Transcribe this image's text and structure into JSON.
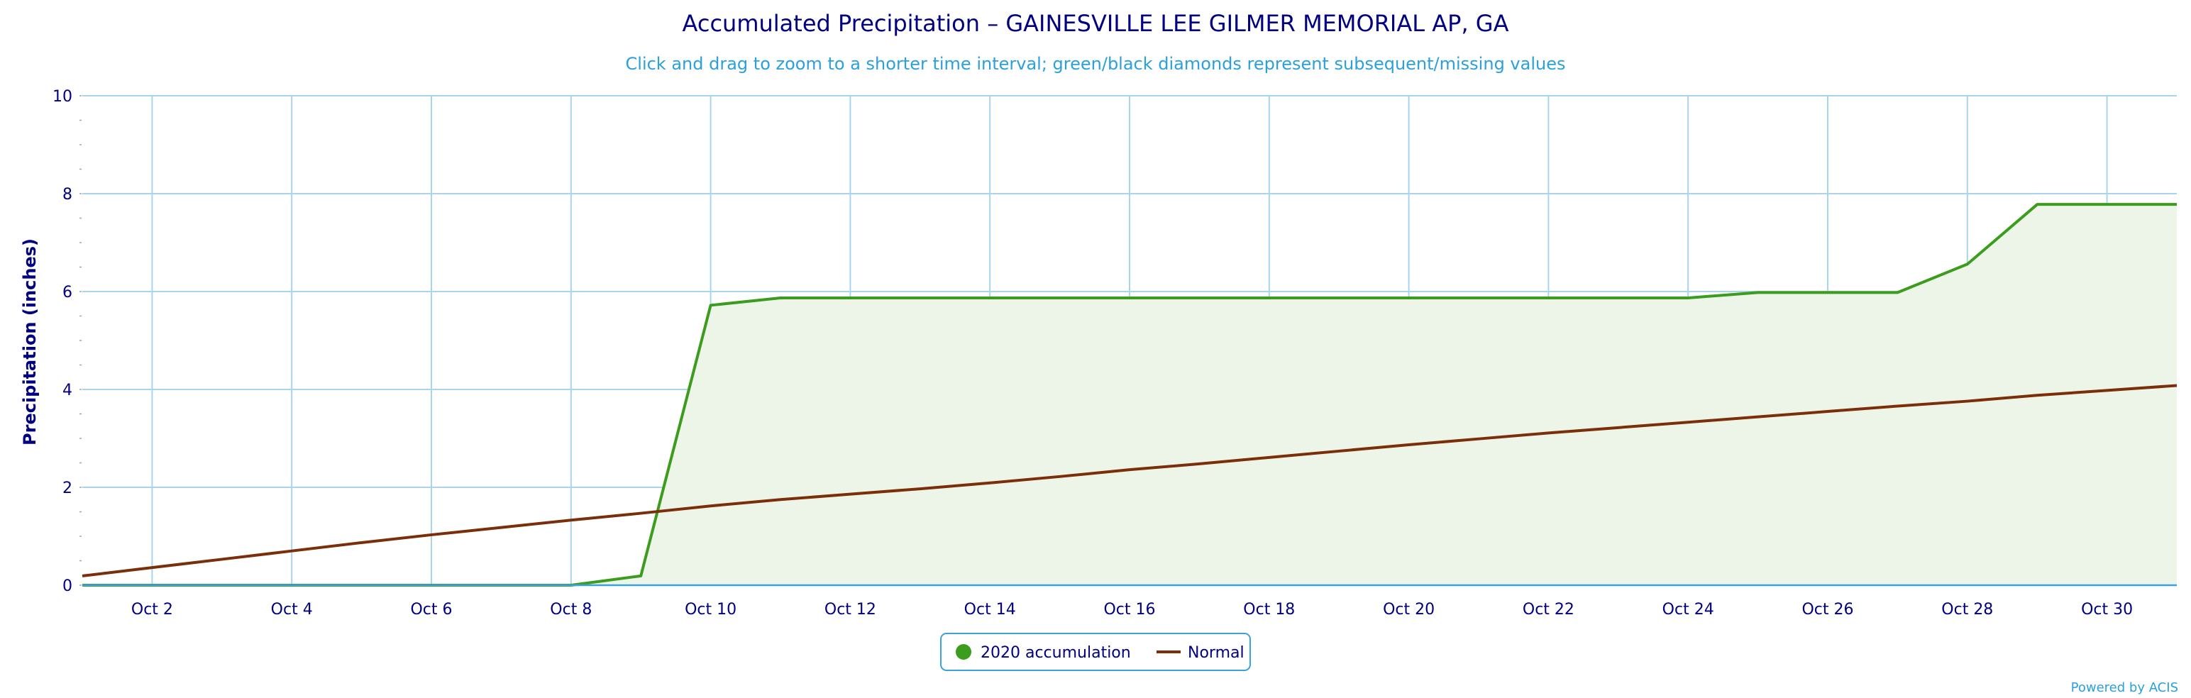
{
  "chart_data": {
    "type": "line",
    "title": "Accumulated Precipitation – GAINESVILLE LEE GILMER MEMORIAL AP, GA",
    "subtitle": "Click and drag to zoom to a shorter time interval; green/black diamonds represent subsequent/missing values",
    "ylabel": "Precipitation (inches)",
    "xlabel": "",
    "xlim": [
      1,
      31
    ],
    "ylim": [
      0,
      10
    ],
    "yticks": [
      0,
      2,
      4,
      6,
      8,
      10
    ],
    "xticks": [
      {
        "x": 2,
        "label": "Oct 2"
      },
      {
        "x": 4,
        "label": "Oct 4"
      },
      {
        "x": 6,
        "label": "Oct 6"
      },
      {
        "x": 8,
        "label": "Oct 8"
      },
      {
        "x": 10,
        "label": "Oct 10"
      },
      {
        "x": 12,
        "label": "Oct 12"
      },
      {
        "x": 14,
        "label": "Oct 14"
      },
      {
        "x": 16,
        "label": "Oct 16"
      },
      {
        "x": 18,
        "label": "Oct 18"
      },
      {
        "x": 20,
        "label": "Oct 20"
      },
      {
        "x": 22,
        "label": "Oct 22"
      },
      {
        "x": 24,
        "label": "Oct 24"
      },
      {
        "x": 26,
        "label": "Oct 26"
      },
      {
        "x": 28,
        "label": "Oct 28"
      },
      {
        "x": 30,
        "label": "Oct 30"
      }
    ],
    "grid": true,
    "legend_position": "bottom-center",
    "series": [
      {
        "name": "2020 accumulation",
        "color": "#3c9c1e",
        "fill": "#edf5e8",
        "type": "area",
        "x": [
          1,
          2,
          3,
          4,
          5,
          6,
          7,
          8,
          9,
          10,
          11,
          12,
          13,
          14,
          15,
          16,
          17,
          18,
          19,
          20,
          21,
          22,
          23,
          24,
          25,
          26,
          27,
          28,
          29,
          30,
          31
        ],
        "values": [
          0,
          0,
          0,
          0,
          0,
          0,
          0,
          0,
          0.19,
          5.72,
          5.87,
          5.87,
          5.87,
          5.87,
          5.87,
          5.87,
          5.87,
          5.87,
          5.87,
          5.87,
          5.87,
          5.87,
          5.87,
          5.87,
          5.98,
          5.98,
          5.98,
          6.56,
          7.78,
          7.78,
          7.78
        ]
      },
      {
        "name": "Normal",
        "color": "#7a2e0a",
        "type": "line",
        "x": [
          1,
          2,
          3,
          4,
          5,
          6,
          7,
          8,
          9,
          10,
          11,
          12,
          13,
          14,
          15,
          16,
          17,
          18,
          19,
          20,
          21,
          22,
          23,
          24,
          25,
          26,
          27,
          28,
          29,
          30,
          31
        ],
        "values": [
          0.19,
          0.36,
          0.53,
          0.7,
          0.87,
          1.03,
          1.18,
          1.33,
          1.47,
          1.62,
          1.75,
          1.86,
          1.97,
          2.09,
          2.22,
          2.36,
          2.48,
          2.61,
          2.74,
          2.87,
          2.99,
          3.11,
          3.22,
          3.33,
          3.44,
          3.55,
          3.66,
          3.76,
          3.88,
          3.98,
          4.08
        ]
      }
    ],
    "credit": "Powered by ACIS"
  }
}
